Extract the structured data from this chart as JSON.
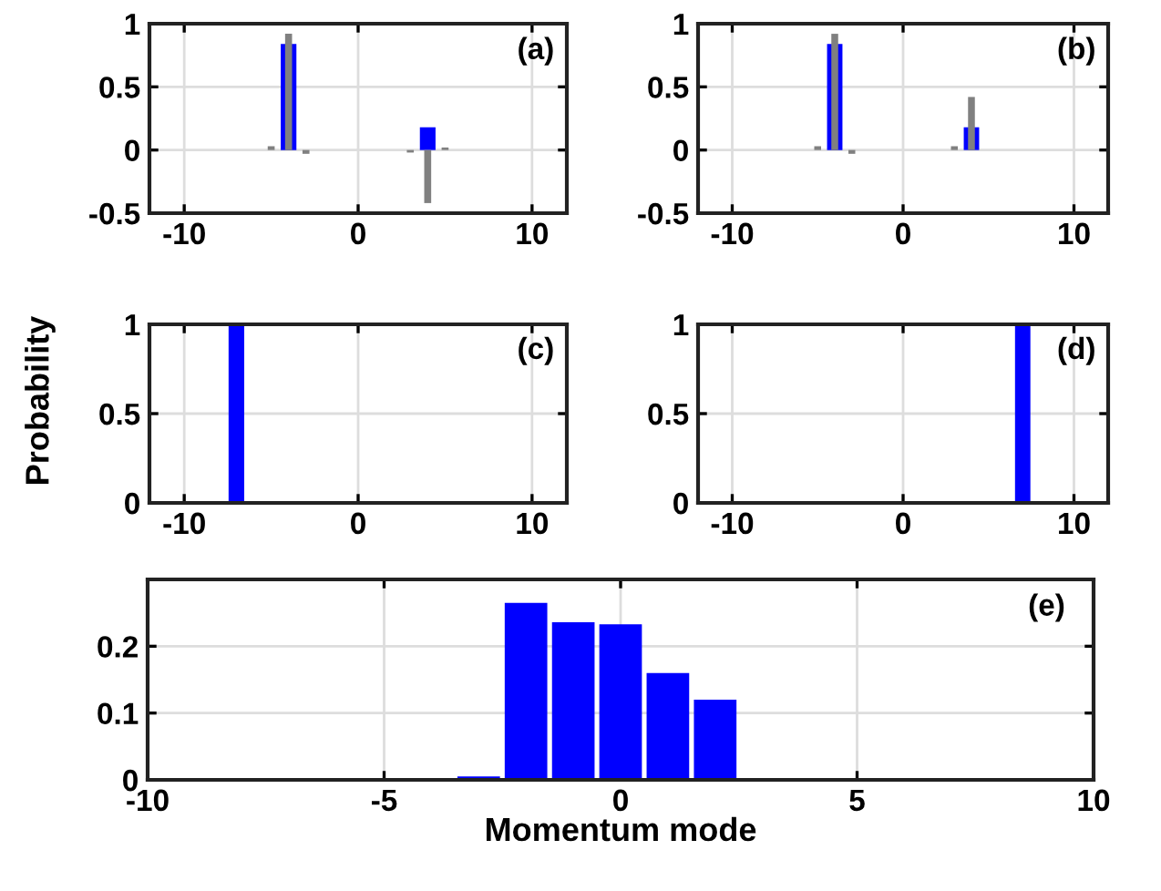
{
  "chart_data": [
    {
      "type": "bar",
      "annotations": [
        {
          "text": "(a)"
        }
      ],
      "xlim": [
        -12,
        12
      ],
      "xticks": [
        -10,
        0,
        10
      ],
      "ylim": [
        -0.5,
        1
      ],
      "yticks": [
        -0.5,
        0,
        0.5,
        1
      ],
      "grid": true,
      "series": [
        {
          "color": "#0000ff",
          "x": [
            -5,
            -4,
            -3,
            3,
            4,
            5
          ],
          "values": [
            0,
            0.84,
            0,
            0,
            0.18,
            0
          ]
        },
        {
          "color": "#808080",
          "x": [
            -5,
            -4,
            -3,
            3,
            4,
            5
          ],
          "values": [
            0.03,
            0.92,
            -0.03,
            -0.02,
            -0.42,
            0.02
          ]
        }
      ]
    },
    {
      "type": "bar",
      "annotations": [
        {
          "text": "(b)"
        }
      ],
      "xlim": [
        -12,
        12
      ],
      "xticks": [
        -10,
        0,
        10
      ],
      "ylim": [
        -0.5,
        1
      ],
      "yticks": [
        -0.5,
        0,
        0.5,
        1
      ],
      "grid": true,
      "series": [
        {
          "color": "#0000ff",
          "x": [
            -5,
            -4,
            -3,
            3,
            4,
            5
          ],
          "values": [
            0,
            0.84,
            0,
            0,
            0.18,
            0
          ]
        },
        {
          "color": "#808080",
          "x": [
            -5,
            -4,
            -3,
            3,
            4,
            5
          ],
          "values": [
            0.03,
            0.92,
            -0.03,
            0.03,
            0.42,
            0
          ]
        }
      ]
    },
    {
      "type": "bar",
      "ylabel": "Probability",
      "annotations": [
        {
          "text": "(c)"
        }
      ],
      "xlim": [
        -12,
        12
      ],
      "xticks": [
        -10,
        0,
        10
      ],
      "ylim": [
        0,
        1
      ],
      "yticks": [
        0,
        0.5,
        1
      ],
      "grid": true,
      "series": [
        {
          "color": "#0000ff",
          "x": [
            -7
          ],
          "values": [
            1
          ]
        }
      ]
    },
    {
      "type": "bar",
      "annotations": [
        {
          "text": "(d)"
        }
      ],
      "xlim": [
        -12,
        12
      ],
      "xticks": [
        -10,
        0,
        10
      ],
      "ylim": [
        0,
        1
      ],
      "yticks": [
        0,
        0.5,
        1
      ],
      "grid": true,
      "series": [
        {
          "color": "#0000ff",
          "x": [
            7
          ],
          "values": [
            1
          ]
        }
      ]
    },
    {
      "type": "bar",
      "xlabel": "Momentum mode",
      "annotations": [
        {
          "text": "(e)"
        }
      ],
      "xlim": [
        -10,
        10
      ],
      "xticks": [
        -10,
        -5,
        0,
        5,
        10
      ],
      "ylim": [
        0,
        0.3
      ],
      "yticks": [
        0,
        0.1,
        0.2
      ],
      "grid": true,
      "series": [
        {
          "color": "#0000ff",
          "x": [
            -3,
            -2,
            -1,
            0,
            1,
            2
          ],
          "values": [
            0.005,
            0.265,
            0.236,
            0.233,
            0.16,
            0.12
          ]
        }
      ]
    }
  ]
}
